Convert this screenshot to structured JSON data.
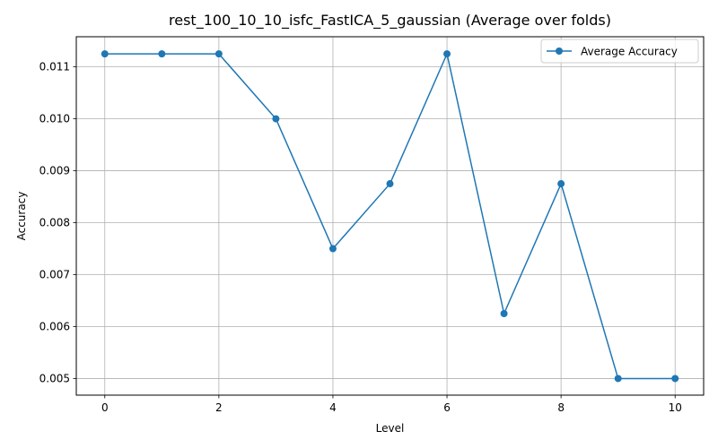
{
  "chart_data": {
    "type": "line",
    "title": "rest_100_10_10_isfc_FastICA_5_gaussian (Average over folds)",
    "xlabel": "Level",
    "ylabel": "Accuracy",
    "xlim": [
      -0.5,
      10.5
    ],
    "ylim": [
      0.00468,
      0.01158
    ],
    "x_ticks": [
      0,
      2,
      4,
      6,
      8,
      10
    ],
    "y_ticks": [
      0.005,
      0.006,
      0.007,
      0.008,
      0.009,
      0.01,
      0.011
    ],
    "y_tick_labels": [
      "0.005",
      "0.006",
      "0.007",
      "0.008",
      "0.009",
      "0.010",
      "0.011"
    ],
    "grid": true,
    "legend_position": "top-right",
    "series": [
      {
        "name": "Average Accuracy",
        "color": "#1f77b4",
        "marker": "circle",
        "x": [
          0,
          1,
          2,
          3,
          4,
          5,
          6,
          7,
          8,
          9,
          10
        ],
        "y": [
          0.01125,
          0.01125,
          0.01125,
          0.01,
          0.0075,
          0.00875,
          0.01125,
          0.00625,
          0.00875,
          0.005,
          0.005
        ]
      }
    ]
  }
}
